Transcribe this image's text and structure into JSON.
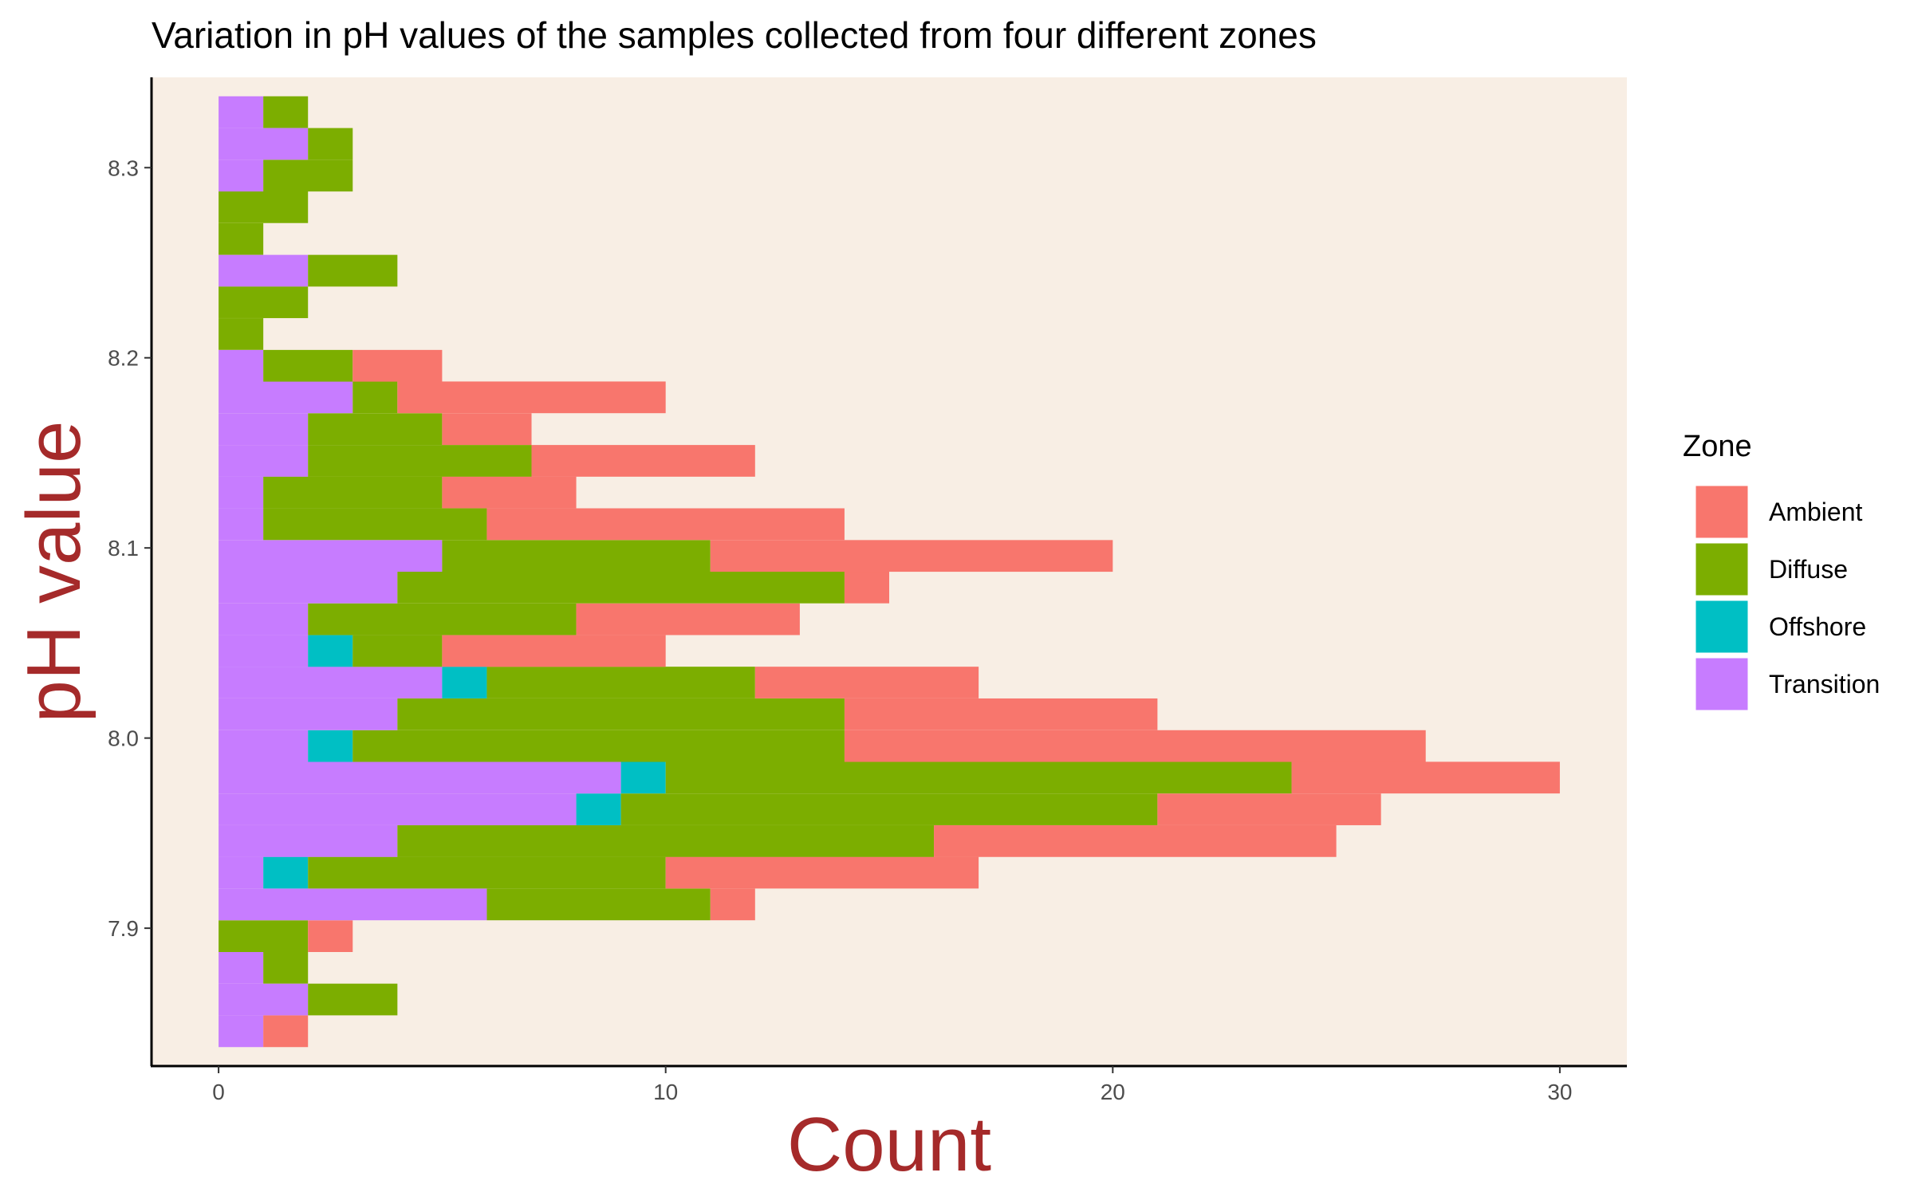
{
  "chart_data": {
    "type": "bar",
    "orientation": "horizontal",
    "stacked": true,
    "title": "Variation in pH values of the samples collected from four different zones",
    "xlabel": "Count",
    "ylabel": "pH value",
    "xlim": [
      -1.5,
      31.5
    ],
    "ylim": [
      7.8275,
      8.3475
    ],
    "x_ticks": [
      0,
      10,
      20,
      30
    ],
    "x_tick_labels": [
      "0",
      "10",
      "20",
      "30"
    ],
    "y_ticks": [
      7.9,
      8.0,
      8.1,
      8.2,
      8.3
    ],
    "y_tick_labels": [
      "7.9",
      "8.0",
      "8.1",
      "8.2",
      "8.3"
    ],
    "bin_width": 0.01667,
    "background_color": "#f8eee4",
    "grid": false,
    "legend": {
      "title": "Zone",
      "position": "right",
      "entries": [
        "Ambient",
        "Diffuse",
        "Offshore",
        "Transition"
      ]
    },
    "series_colors": {
      "Ambient": "#f8766d",
      "Diffuse": "#7cae00",
      "Offshore": "#00bfc4",
      "Transition": "#c77cff"
    },
    "stack_order": [
      "Transition",
      "Offshore",
      "Diffuse",
      "Ambient"
    ],
    "bins": [
      7.8458,
      7.8625,
      7.8792,
      7.8958,
      7.9125,
      7.9292,
      7.9458,
      7.9625,
      7.9792,
      7.9958,
      8.0125,
      8.0292,
      8.0458,
      8.0625,
      8.0792,
      8.0958,
      8.1125,
      8.1292,
      8.1458,
      8.1625,
      8.1792,
      8.1958,
      8.2125,
      8.2292,
      8.2458,
      8.2625,
      8.2792,
      8.2958,
      8.3125,
      8.3292
    ],
    "series": [
      {
        "name": "Transition",
        "values": [
          1,
          2,
          1,
          0,
          6,
          1,
          4,
          8,
          9,
          2,
          4,
          5,
          2,
          2,
          4,
          5,
          1,
          1,
          2,
          2,
          3,
          1,
          0,
          0,
          2,
          0,
          0,
          1,
          2,
          1
        ]
      },
      {
        "name": "Offshore",
        "values": [
          0,
          0,
          0,
          0,
          0,
          1,
          0,
          1,
          1,
          1,
          0,
          1,
          1,
          0,
          0,
          0,
          0,
          0,
          0,
          0,
          0,
          0,
          0,
          0,
          0,
          0,
          0,
          0,
          0,
          0
        ]
      },
      {
        "name": "Diffuse",
        "values": [
          0,
          2,
          1,
          2,
          5,
          8,
          12,
          12,
          14,
          11,
          10,
          6,
          2,
          6,
          10,
          6,
          5,
          4,
          5,
          3,
          1,
          2,
          1,
          2,
          2,
          1,
          2,
          2,
          1,
          1
        ]
      },
      {
        "name": "Ambient",
        "values": [
          1,
          0,
          0,
          1,
          1,
          7,
          9,
          5,
          6,
          13,
          7,
          5,
          5,
          5,
          1,
          9,
          8,
          3,
          5,
          2,
          6,
          2,
          0,
          0,
          0,
          0,
          0,
          0,
          0,
          0
        ]
      }
    ]
  }
}
